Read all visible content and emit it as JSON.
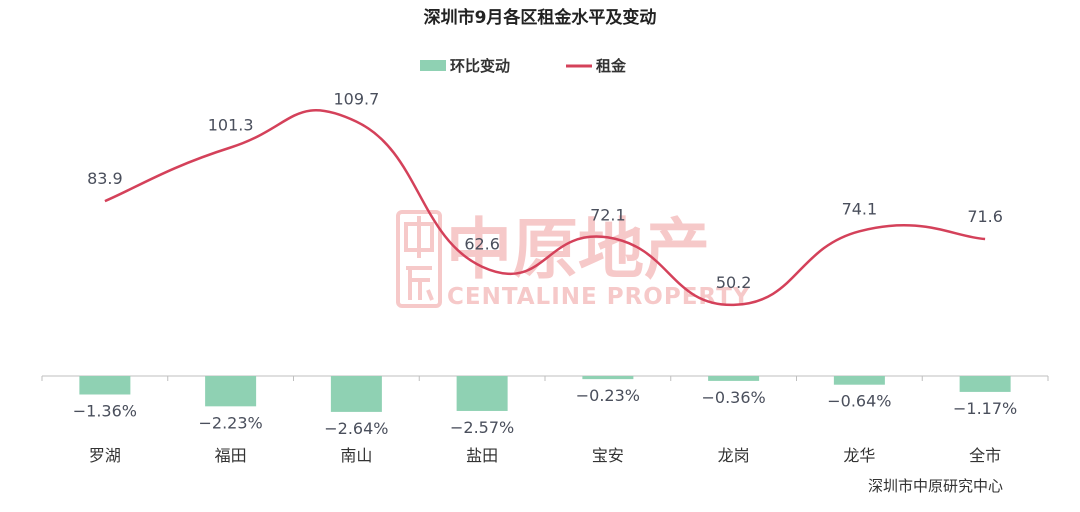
{
  "chart_data": {
    "type": "bar+line",
    "title": "深圳市9月各区租金水平及变动",
    "categories": [
      "罗湖",
      "福田",
      "南山",
      "盐田",
      "宝安",
      "龙岗",
      "龙华",
      "全市"
    ],
    "series": [
      {
        "name": "环比变动",
        "type": "bar",
        "values": [
          -1.36,
          -2.23,
          -2.64,
          -2.57,
          -0.23,
          -0.36,
          -0.64,
          -1.17
        ],
        "labels": [
          "−1.36%",
          "−2.23%",
          "−2.64%",
          "−2.57%",
          "−0.23%",
          "−0.36%",
          "−0.64%",
          "−1.17%"
        ],
        "color": "#8fd1b3"
      },
      {
        "name": "租金",
        "type": "line",
        "values": [
          83.9,
          101.3,
          109.7,
          62.6,
          72.1,
          50.2,
          74.1,
          71.6
        ],
        "labels": [
          "83.9",
          "101.3",
          "109.7",
          "62.6",
          "72.1",
          "50.2",
          "74.1",
          "71.6"
        ],
        "color": "#d4415a",
        "smooth": true
      }
    ],
    "legend_placement": "top-center",
    "grid": false
  },
  "watermark": {
    "chinese": "中原地产",
    "english": "CENTALINE PROPERTY",
    "color": "#f6c9c9"
  },
  "source": "深圳市中原研究中心"
}
